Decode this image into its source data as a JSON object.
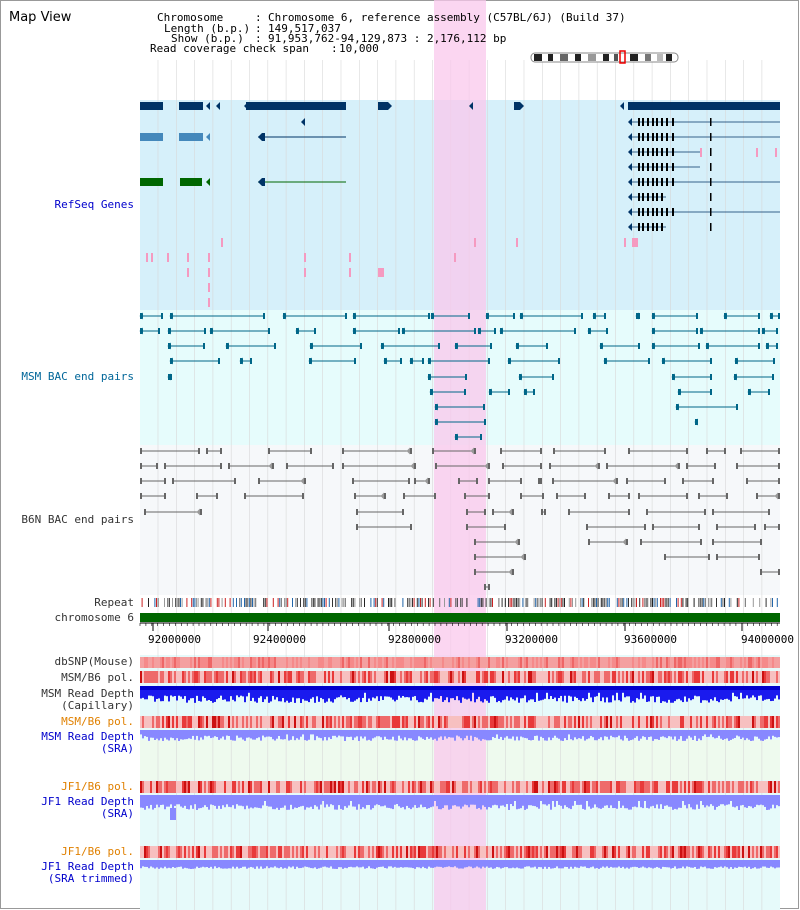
{
  "page_title": "Map View",
  "header": {
    "chromosome_label": "Chromosome",
    "chromosome_value": "Chromosome 6, reference assembly (C57BL/6J) (Build 37)",
    "length_label": "Length (b.p.)",
    "length_value": "149,517,037",
    "show_label": "Show (b.p.)",
    "show_value": "91,953,762-94,129,873 : 2,176,112 bp",
    "coverage_label": "Read coverage check span",
    "coverage_value": "10,000"
  },
  "tracks": {
    "refseq": "RefSeq Genes",
    "msm_bac": "MSM BAC end pairs",
    "b6n_bac": "B6N BAC end pairs",
    "repeat": "Repeat",
    "chromosome": "chromosome 6"
  },
  "positions": [
    "92000000",
    "92400000",
    "92800000",
    "93200000",
    "93600000",
    "94000000"
  ],
  "bottom_tracks": {
    "dbsnp": "dbSNP(Mouse)",
    "msm_b6_pol_1": "MSM/B6 pol.",
    "msm_read_depth_cap_1": "MSM Read Depth",
    "msm_read_depth_cap_2": "(Capillary)",
    "msm_b6_pol_2": "MSM/B6 pol.",
    "msm_read_depth_sra_1": "MSM Read Depth",
    "msm_read_depth_sra_2": "(SRA)",
    "jf1_b6_pol_1": "JF1/B6 pol.",
    "jf1_read_depth_sra_1": "JF1 Read Depth",
    "jf1_read_depth_sra_2": "(SRA)",
    "jf1_b6_pol_2": "JF1/B6 pol.",
    "jf1_read_depth_trim_1": "JF1 Read Depth",
    "jf1_read_depth_trim_2": "(SRA trimmed)"
  },
  "colors": {
    "refseq_bg": "#d6f0fa",
    "bac_bg": "#e6fcfc",
    "b6n_bg": "#f6f8fa",
    "highlight": "#f9c8ec",
    "gene_dark": "#003366",
    "gene_mid": "#4488bb",
    "gene_green": "#006600",
    "bac_line": "#006688",
    "b6n_line": "#666666",
    "chromosome_bar": "#006600",
    "depth_blue": "#1a1aee",
    "depth_light": "#8888ff",
    "pol_red": "#ee4444",
    "lower_bg": "#e6fafa"
  }
}
